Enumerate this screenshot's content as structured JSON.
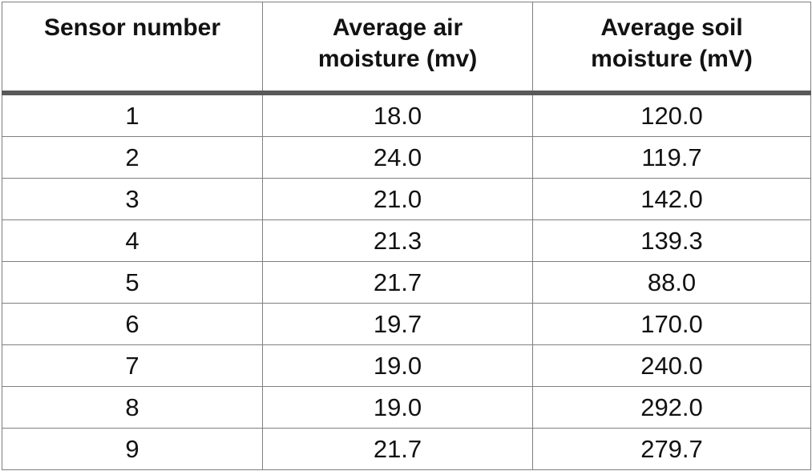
{
  "table": {
    "headers": [
      "Sensor number",
      "Average air\nmoisture (mv)",
      "Average soil\nmoisture (mV)"
    ],
    "rows": [
      [
        "1",
        "18.0",
        "120.0"
      ],
      [
        "2",
        "24.0",
        "119.7"
      ],
      [
        "3",
        "21.0",
        "142.0"
      ],
      [
        "4",
        "21.3",
        "139.3"
      ],
      [
        "5",
        "21.7",
        "88.0"
      ],
      [
        "6",
        "19.7",
        "170.0"
      ],
      [
        "7",
        "19.0",
        "240.0"
      ],
      [
        "8",
        "19.0",
        "292.0"
      ],
      [
        "9",
        "21.7",
        "279.7"
      ]
    ]
  },
  "chart_data": {
    "type": "table",
    "title": "",
    "columns": [
      "Sensor number",
      "Average air moisture (mv)",
      "Average soil moisture (mV)"
    ],
    "sensor_numbers": [
      1,
      2,
      3,
      4,
      5,
      6,
      7,
      8,
      9
    ],
    "series": [
      {
        "name": "Average air moisture (mv)",
        "values": [
          18.0,
          24.0,
          21.0,
          21.3,
          21.7,
          19.7,
          19.0,
          19.0,
          21.7
        ]
      },
      {
        "name": "Average soil moisture (mV)",
        "values": [
          120.0,
          119.7,
          142.0,
          139.3,
          88.0,
          170.0,
          240.0,
          292.0,
          279.7
        ]
      }
    ]
  },
  "colors": {
    "text": "#121212",
    "grid_border": "#7f7f7f",
    "header_separator": "#595959",
    "background": "#ffffff"
  }
}
